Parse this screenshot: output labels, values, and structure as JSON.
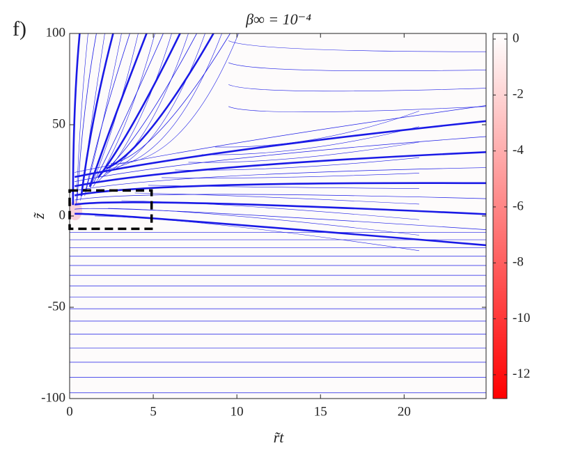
{
  "chart_data": {
    "type": "contour",
    "panel_label": "f)",
    "title": "β∞ = 10⁻⁴",
    "xlabel": "r̃t",
    "ylabel": "z̃",
    "xlim": [
      0,
      24.9
    ],
    "xticks": [
      0,
      5,
      10,
      15,
      20
    ],
    "ylim": [
      -100,
      100
    ],
    "yticks": [
      -100,
      -50,
      0,
      50,
      100
    ],
    "colorbar": {
      "lim": [
        -12.85,
        0.2
      ],
      "ticks": [
        0,
        -2,
        -4,
        -6,
        -8,
        -10,
        -12
      ],
      "colors": [
        "#ff0000",
        "#ffffff"
      ]
    },
    "line_color": "#1a1ae6",
    "region": {
      "x": [
        0,
        4.9
      ],
      "y": [
        -7,
        14
      ]
    }
  }
}
